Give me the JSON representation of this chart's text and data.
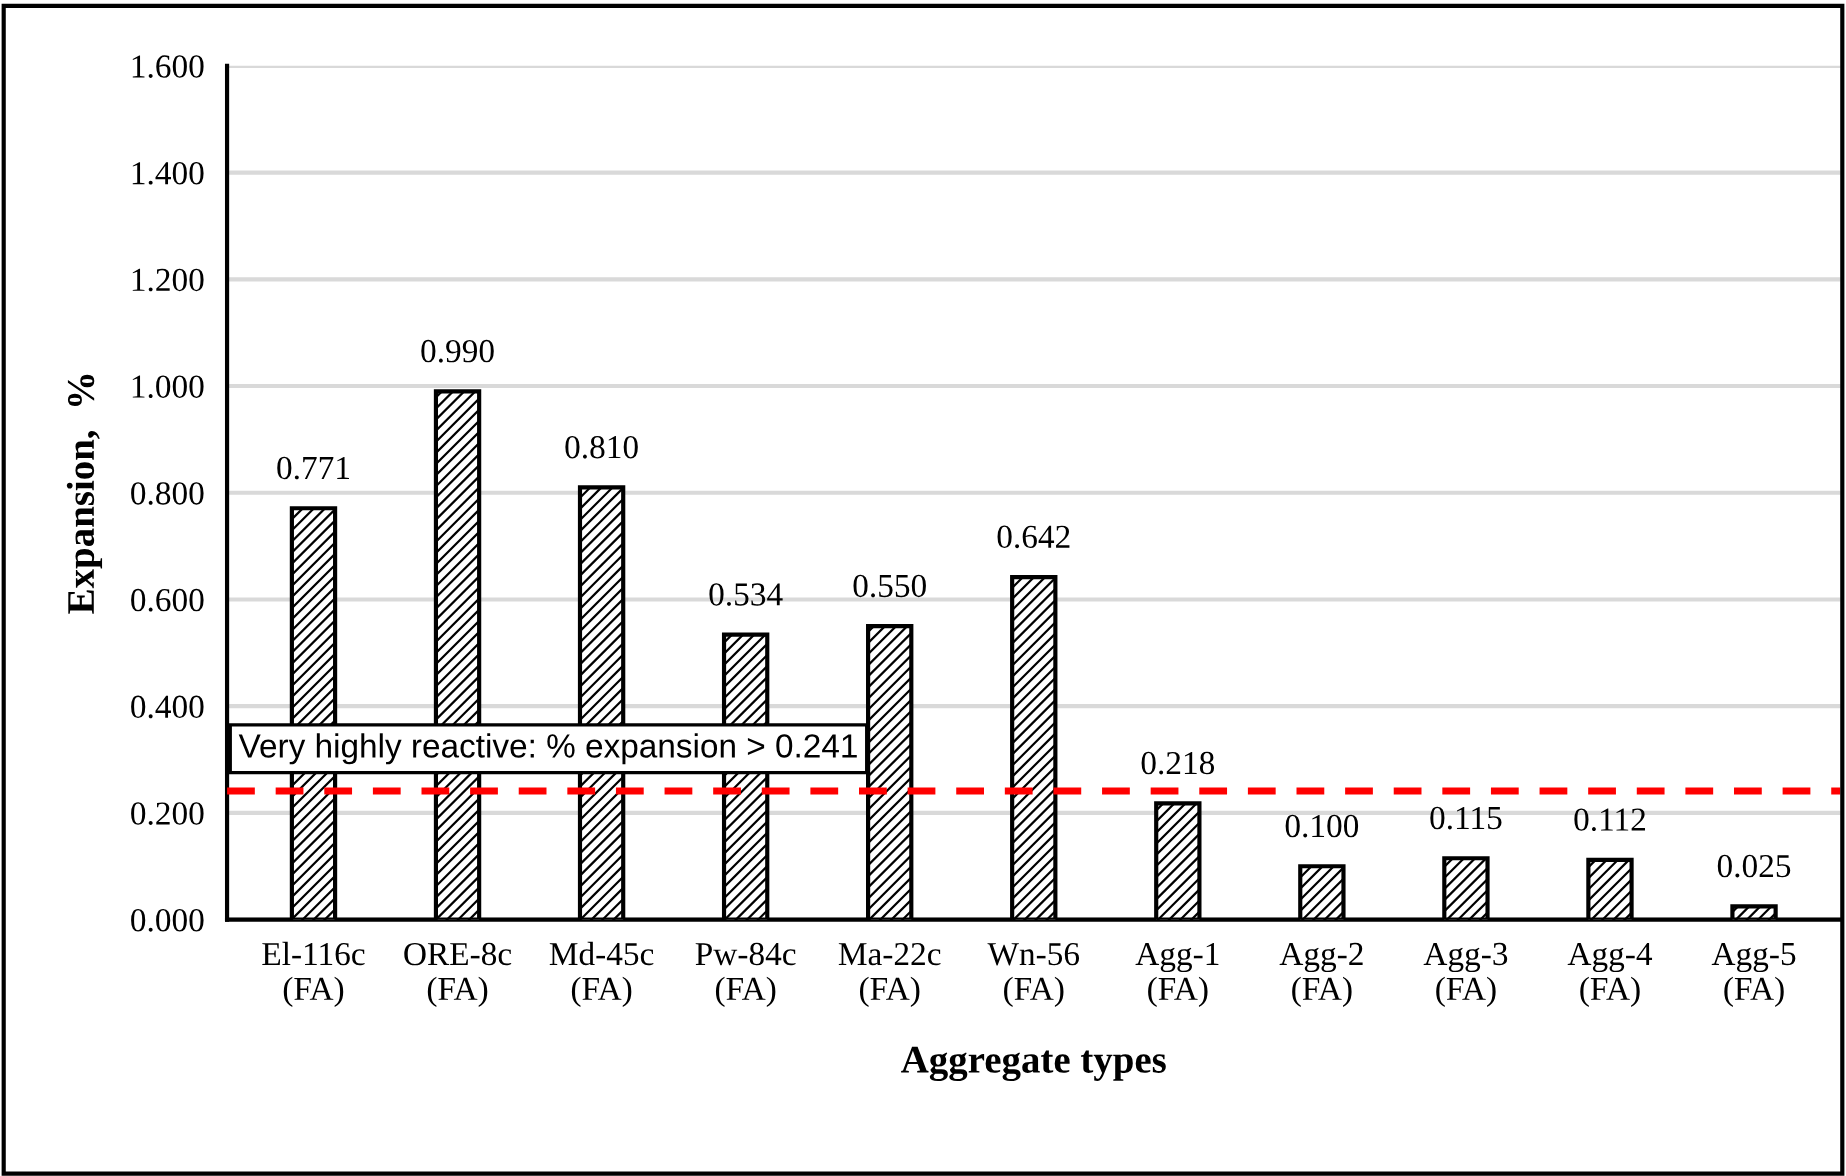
{
  "chart_data": {
    "type": "bar",
    "xlabel": "Aggregate types",
    "ylabel": "Expansion,  %",
    "categories": [
      "El-116c\n(FA)",
      "ORE-8c\n(FA)",
      "Md-45c\n(FA)",
      "Pw-84c\n(FA)",
      "Ma-22c\n(FA)",
      "Wn-56\n(FA)",
      "Agg-1\n(FA)",
      "Agg-2\n(FA)",
      "Agg-3\n(FA)",
      "Agg-4\n(FA)",
      "Agg-5\n(FA)"
    ],
    "values": [
      0.771,
      0.99,
      0.81,
      0.534,
      0.55,
      0.642,
      0.218,
      0.1,
      0.115,
      0.112,
      0.025
    ],
    "value_labels": [
      "0.771",
      "0.990",
      "0.810",
      "0.534",
      "0.550",
      "0.642",
      "0.218",
      "0.100",
      "0.115",
      "0.112",
      "0.025"
    ],
    "color": "#000000",
    "ylim": [
      0,
      1.6
    ],
    "yticks": [
      {
        "value": 0,
        "label": "0.000"
      },
      {
        "value": 0.2,
        "label": "0.200"
      },
      {
        "value": 0.4,
        "label": "0.400"
      },
      {
        "value": 0.6,
        "label": "0.600"
      },
      {
        "value": 0.8,
        "label": "0.800"
      },
      {
        "value": 1.0,
        "label": "1.000"
      },
      {
        "value": 1.2,
        "label": "1.200"
      },
      {
        "value": 1.4,
        "label": "1.400"
      },
      {
        "value": 1.6,
        "label": "1.600"
      }
    ],
    "grid": "y",
    "ref_lines": [
      {
        "axis": "y",
        "value": 0.241,
        "label": "Very highly reactive: % expansion > 0.241",
        "color": "#ff0000",
        "line_style": "dashed"
      }
    ]
  }
}
